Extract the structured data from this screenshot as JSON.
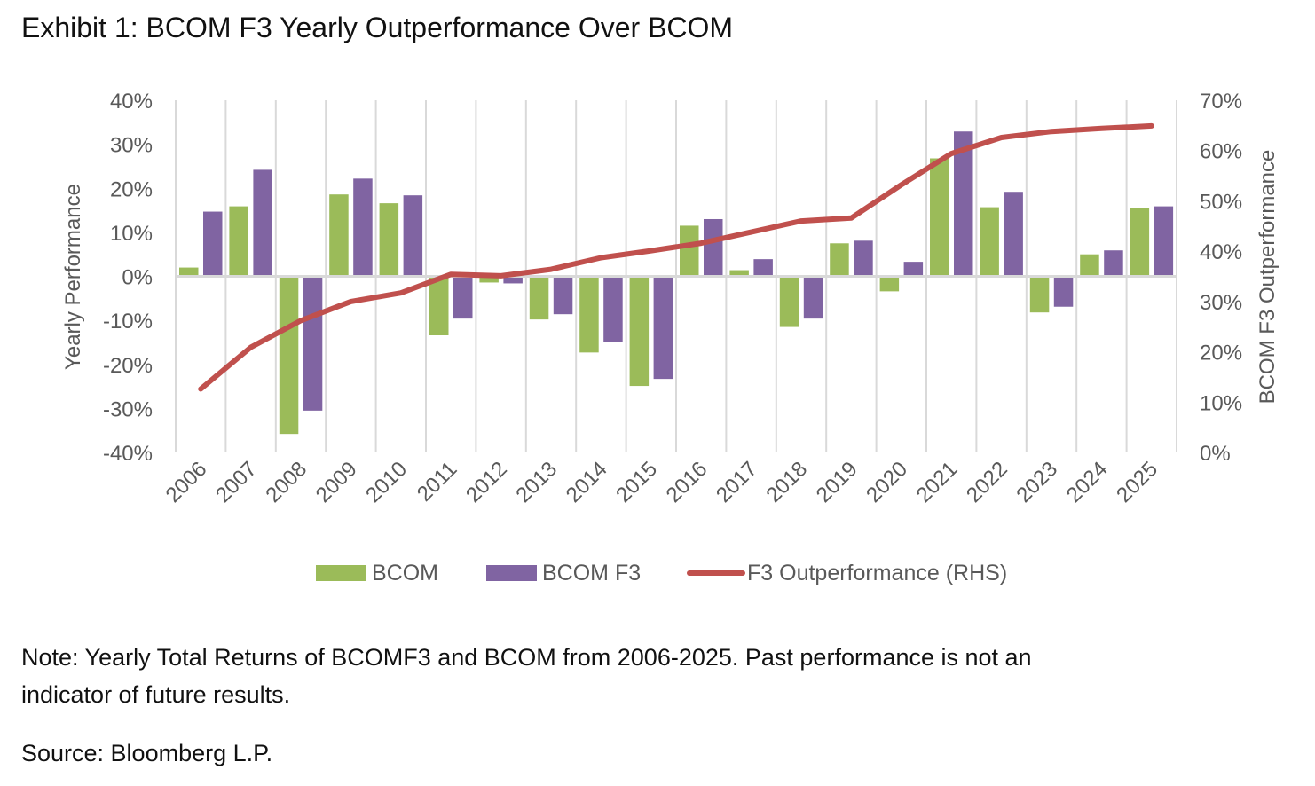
{
  "title": "Exhibit 1: BCOM F3 Yearly Outperformance Over BCOM",
  "note_line1": "Note: Yearly Total Returns of BCOMF3 and BCOM from 2006-2025. Past performance is not an",
  "note_line2": "indicator of future results.",
  "source": "Source: Bloomberg L.P.",
  "chart_data": {
    "type": "bar",
    "categories": [
      "2006",
      "2007",
      "2008",
      "2009",
      "2010",
      "2011",
      "2012",
      "2013",
      "2014",
      "2015",
      "2016",
      "2017",
      "2018",
      "2019",
      "2020",
      "2021",
      "2022",
      "2023",
      "2024",
      "2025"
    ],
    "series": [
      {
        "name": "BCOM",
        "type": "bar",
        "axis": "left",
        "color": "#9BBB59",
        "values": [
          2.0,
          15.9,
          -35.8,
          18.6,
          16.6,
          -13.4,
          -1.4,
          -9.8,
          -17.3,
          -24.9,
          11.5,
          1.4,
          -11.5,
          7.5,
          -3.4,
          26.8,
          15.7,
          -8.2,
          5.0,
          15.5
        ]
      },
      {
        "name": "BCOM F3",
        "type": "bar",
        "axis": "left",
        "color": "#8064A2",
        "values": [
          14.7,
          24.2,
          -30.5,
          22.2,
          18.4,
          -9.6,
          -1.6,
          -8.6,
          -15.0,
          -23.3,
          13.0,
          3.9,
          -9.6,
          8.1,
          3.3,
          32.9,
          19.2,
          -6.9,
          5.9,
          15.9
        ]
      },
      {
        "name": "F3 Outperformance (RHS)",
        "type": "line",
        "axis": "right",
        "color": "#C0504D",
        "values": [
          12.6,
          20.9,
          26.2,
          30.0,
          31.7,
          35.4,
          35.1,
          36.4,
          38.7,
          40.1,
          41.6,
          43.8,
          46.0,
          46.6,
          53.2,
          59.4,
          62.6,
          63.8,
          64.4,
          64.9
        ]
      }
    ],
    "ylabel": "Yearly Performance",
    "y2label": "BCOM F3 Outperformance",
    "ylim": [
      -40,
      40
    ],
    "y2lim": [
      0,
      70
    ],
    "yticks": [
      "40%",
      "30%",
      "20%",
      "10%",
      "0%",
      "-10%",
      "-20%",
      "-30%",
      "-40%"
    ],
    "y2ticks": [
      "70%",
      "60%",
      "50%",
      "40%",
      "30%",
      "20%",
      "10%",
      "0%"
    ],
    "grid": "vertical",
    "legend": "bottom"
  }
}
